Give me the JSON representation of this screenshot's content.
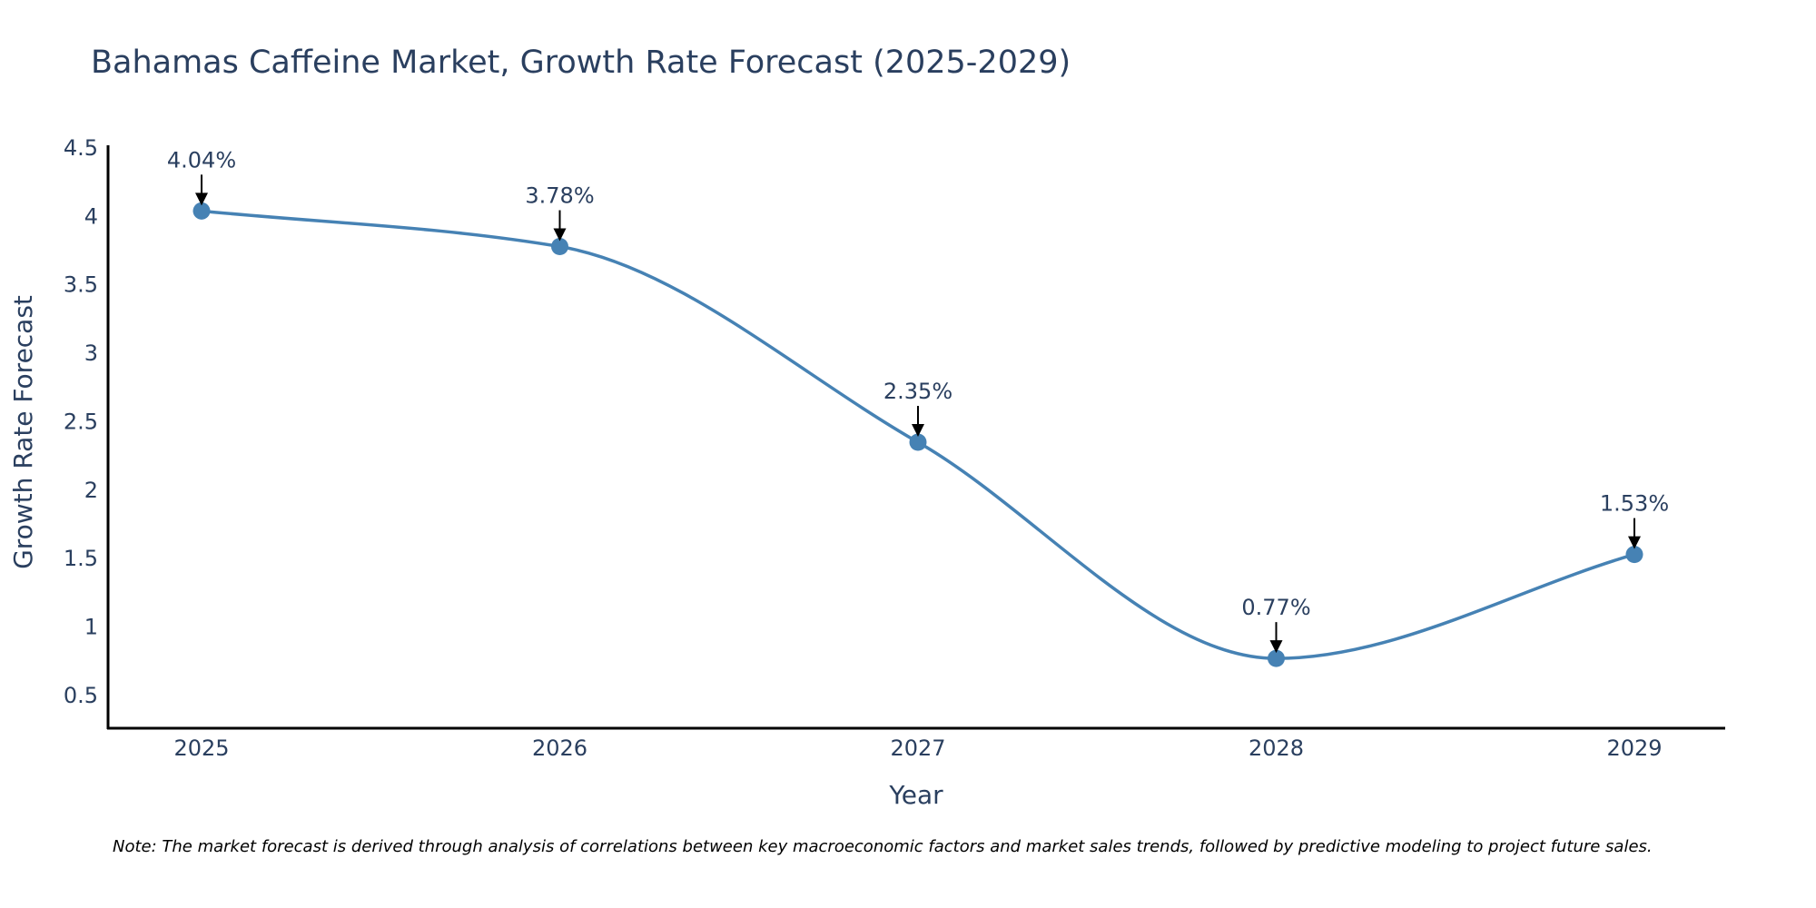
{
  "chart_data": {
    "type": "line",
    "title": "Bahamas Caffeine Market, Growth Rate Forecast (2025-2029)",
    "xlabel": "Year",
    "ylabel": "Growth Rate Forecast",
    "categories": [
      "2025",
      "2026",
      "2027",
      "2028",
      "2029"
    ],
    "series": [
      {
        "name": "Growth Rate Forecast",
        "values": [
          4.04,
          3.78,
          2.35,
          0.77,
          1.53
        ],
        "labels": [
          "4.04%",
          "3.78%",
          "2.35%",
          "0.77%",
          "1.53%"
        ],
        "color": "#4682b4"
      }
    ],
    "yticks": [
      "0.5",
      "1",
      "1.5",
      "2",
      "2.5",
      "3",
      "3.5",
      "4",
      "4.5"
    ],
    "ylim": [
      0.26,
      4.52
    ],
    "grid": false,
    "smoothing": "spline",
    "note": "Note: The market forecast is derived through analysis of correlations between key macroeconomic factors and market sales trends, followed by predictive modeling to project future sales."
  },
  "colors": {
    "line": "#4682b4",
    "text": "#2a3f5f",
    "axis": "#000000",
    "arrow": "#000000"
  }
}
